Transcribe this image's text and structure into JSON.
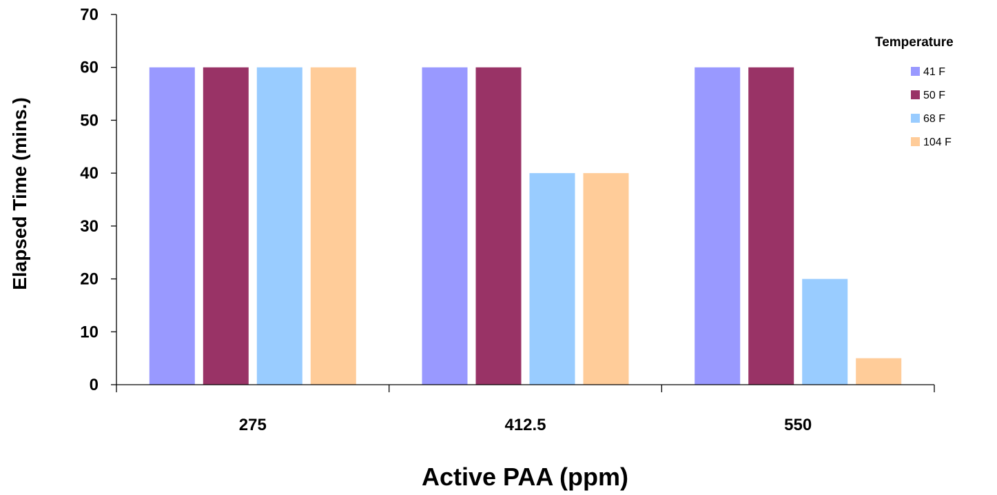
{
  "chart_data": {
    "type": "bar",
    "title": "",
    "xlabel": "Active PAA (ppm)",
    "ylabel": "Elapsed Time (mins.)",
    "categories": [
      "275",
      "412.5",
      "550"
    ],
    "ylim": [
      0,
      70
    ],
    "yticks": [
      0,
      10,
      20,
      30,
      40,
      50,
      60,
      70
    ],
    "grid": false,
    "legend": {
      "title": "Temperature",
      "position": "right"
    },
    "series": [
      {
        "name": "41 F",
        "color": "#9999FF",
        "values": [
          60,
          60,
          60
        ]
      },
      {
        "name": "50 F",
        "color": "#993366",
        "values": [
          60,
          60,
          60
        ]
      },
      {
        "name": "68 F",
        "color": "#99CCFF",
        "values": [
          60,
          40,
          20
        ]
      },
      {
        "name": "104 F",
        "color": "#FFCC99",
        "values": [
          60,
          40,
          5
        ]
      }
    ]
  }
}
